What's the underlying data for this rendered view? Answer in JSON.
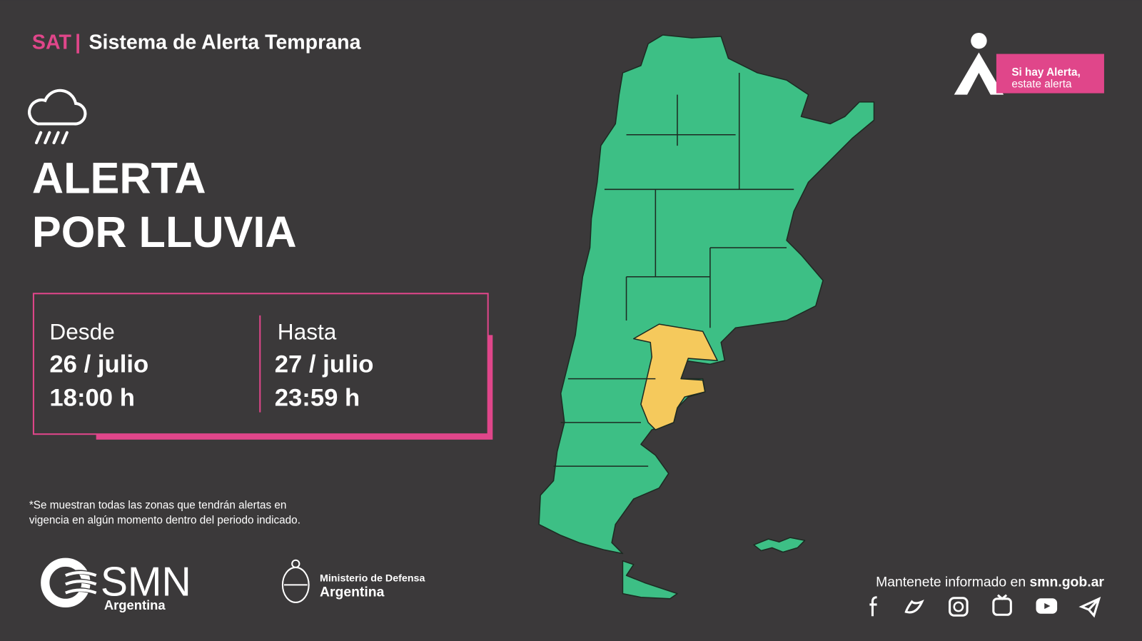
{
  "header": {
    "brand": "SAT",
    "separator": "|",
    "title": "Sistema de Alerta Temprana"
  },
  "alert": {
    "title_line1": "ALERTA",
    "title_line2": "POR LLUVIA"
  },
  "period": {
    "from": {
      "label": "Desde",
      "date": "26 / julio",
      "time": "18:00 h"
    },
    "to": {
      "label": "Hasta",
      "date": "27 / julio",
      "time": "23:59 h"
    }
  },
  "footnote": {
    "line1": "*Se muestran todas las zonas que tendrán alertas en",
    "line2": "vigencia en algún momento dentro del periodo indicado."
  },
  "badge": {
    "line1": "Si hay Alerta,",
    "line2": "estate alerta"
  },
  "logos": {
    "smn": "SMN",
    "smn_sub": "Argentina",
    "ministry": "Ministerio de Defensa",
    "ministry_sub": "Argentina"
  },
  "footer": {
    "text": "Mantenete informado en ",
    "link": "smn.gob.ar"
  }
}
